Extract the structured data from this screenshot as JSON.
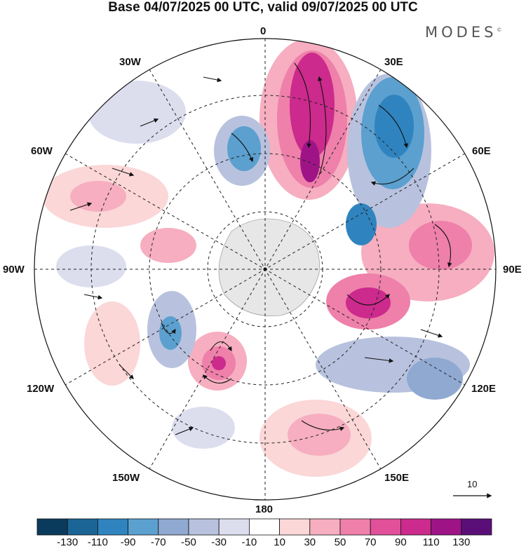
{
  "title": "Base 04/07/2025 00 UTC, valid 09/07/2025 00 UTC",
  "brand": "MODES",
  "brand_mark": "©",
  "longitude_labels": {
    "lon_0": "0",
    "lon_30e": "30E",
    "lon_60e": "60E",
    "lon_90e": "90E",
    "lon_120e": "120E",
    "lon_150e": "150E",
    "lon_180": "180",
    "lon_150w": "150W",
    "lon_120w": "120W",
    "lon_90w": "90W",
    "lon_60w": "60W",
    "lon_30w": "30W"
  },
  "vector_scale": {
    "label": "10"
  },
  "colorbar": {
    "colors": [
      "#0b3b5c",
      "#1a6595",
      "#2f84bf",
      "#5ba0cf",
      "#8fa9d1",
      "#b8c2de",
      "#dcdeee",
      "#ffffff",
      "#fbd7d7",
      "#f6aec0",
      "#ee80aa",
      "#e2509a",
      "#cc2a8c",
      "#9e1487",
      "#5a0f78"
    ],
    "ticks": [
      "-130",
      "-110",
      "-90",
      "-70",
      "-50",
      "-30",
      "-10",
      "10",
      "30",
      "50",
      "70",
      "90",
      "110",
      "130"
    ]
  },
  "map": {
    "projection": "south polar stereographic",
    "latitude_circles_dashed": true,
    "meridians_dashed": true
  }
}
